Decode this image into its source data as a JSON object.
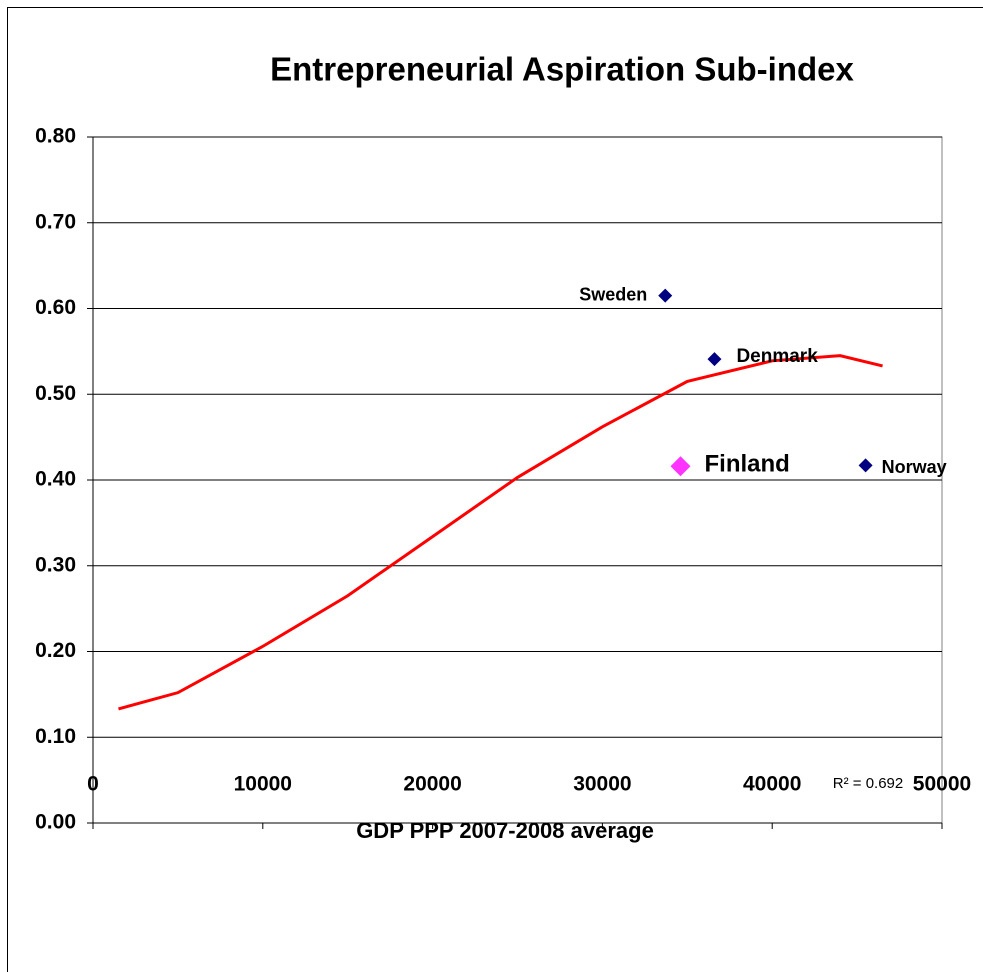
{
  "chart_data": {
    "type": "scatter",
    "title": "Entrepreneurial Aspiration Sub-index",
    "x_label": "GDP PPP 2007-2008 average",
    "annotation": "R² = 0.692",
    "xlim": [
      0,
      50000
    ],
    "xticks": [
      0,
      10000,
      20000,
      30000,
      40000,
      50000
    ],
    "ylim": [
      0,
      0.8
    ],
    "yticks": [
      {
        "value": 0,
        "label": "0.00"
      },
      {
        "value": 0.1,
        "label": "0.10"
      },
      {
        "value": 0.2,
        "label": "0.20"
      },
      {
        "value": 0.3,
        "label": "0.30"
      },
      {
        "value": 0.4,
        "label": "0.40"
      },
      {
        "value": 0.5,
        "label": "0.50"
      },
      {
        "value": 0.6,
        "label": "0.60"
      },
      {
        "value": 0.7,
        "label": "0.70"
      },
      {
        "value": 0.8,
        "label": "0.80"
      }
    ],
    "grid": true,
    "points": [
      {
        "name": "Sweden",
        "x": 33700,
        "y": 0.615,
        "color": "#000080"
      },
      {
        "name": "Denmark",
        "x": 36600,
        "y": 0.541,
        "color": "#000080"
      },
      {
        "name": "Finland",
        "x": 34600,
        "y": 0.416,
        "color": "#ff33ff"
      },
      {
        "name": "Norway",
        "x": 45500,
        "y": 0.417,
        "color": "#000080"
      }
    ],
    "trend": {
      "color": "#ff0000",
      "x": [
        1500,
        5000,
        10000,
        15000,
        20000,
        25000,
        30000,
        35000,
        40000,
        44000,
        46500
      ],
      "y": [
        0.133,
        0.152,
        0.206,
        0.265,
        0.334,
        0.403,
        0.462,
        0.515,
        0.539,
        0.545,
        0.533
      ]
    }
  }
}
